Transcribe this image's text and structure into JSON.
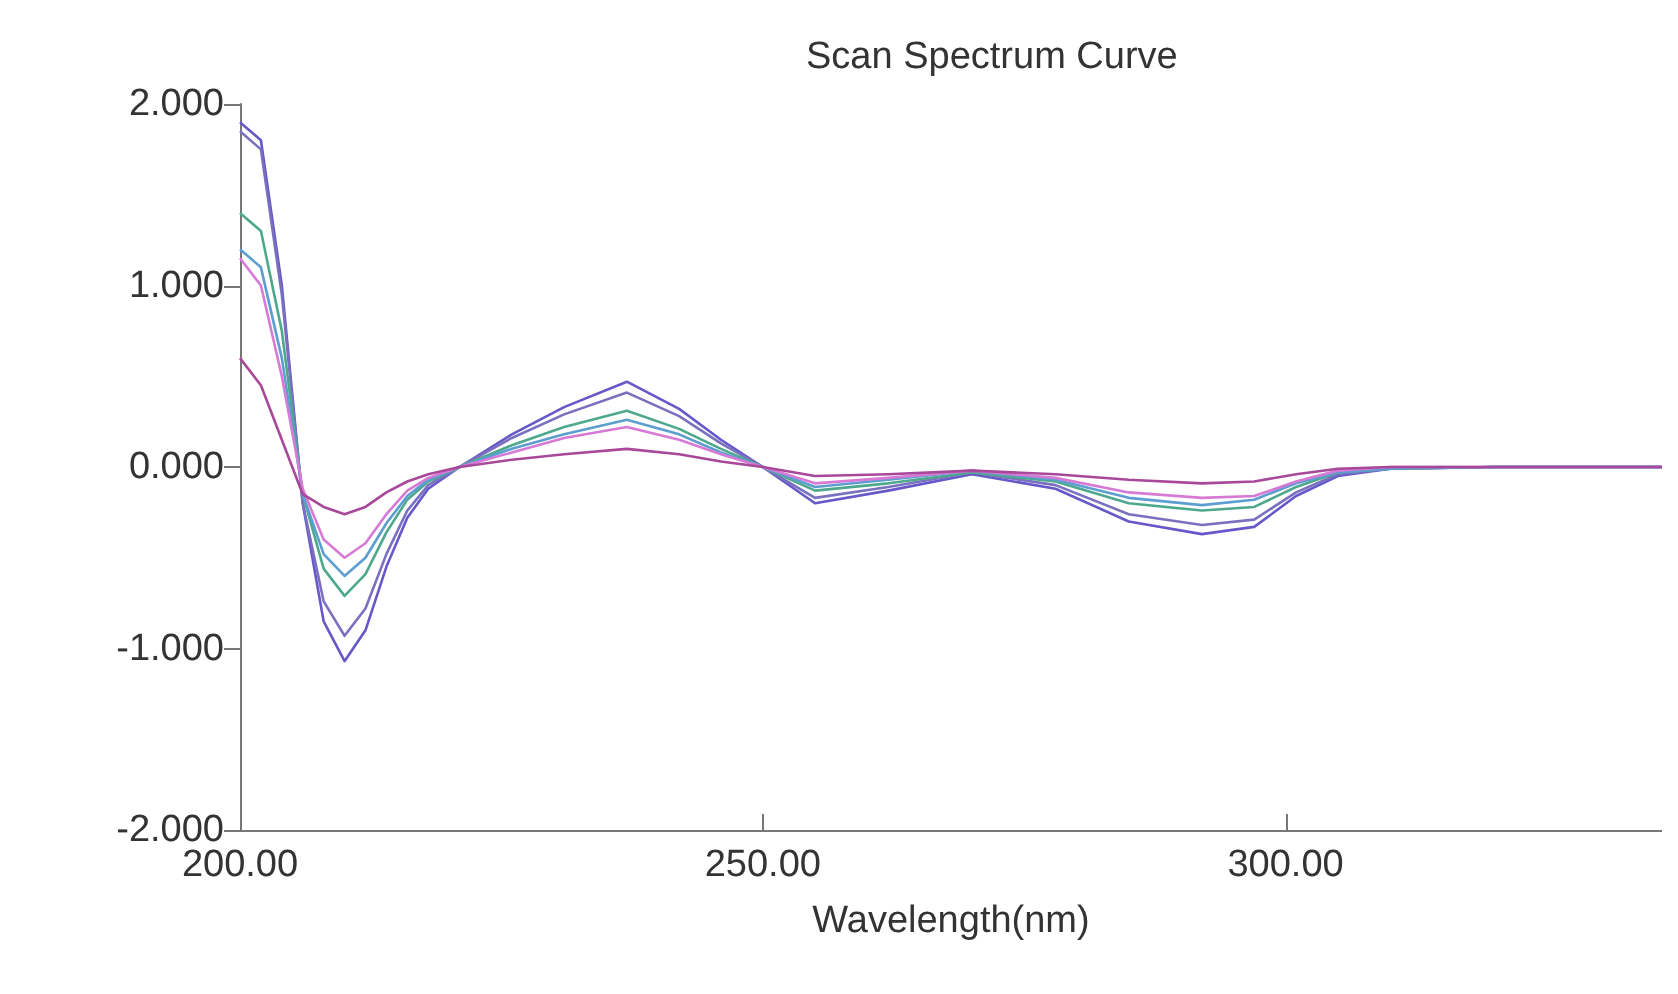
{
  "chart_data": {
    "type": "line",
    "title": "Scan Spectrum Curve",
    "xlabel": "Wavelength(nm)",
    "x": [
      200,
      202,
      204,
      206,
      208,
      210,
      212,
      214,
      216,
      218,
      221,
      226,
      231,
      237,
      242,
      246,
      250,
      255,
      262,
      270,
      278,
      285,
      292,
      297,
      301,
      305,
      310,
      320,
      336
    ],
    "xlim": [
      200,
      336
    ],
    "xticks": [
      {
        "value": 200,
        "label": "200.00"
      },
      {
        "value": 250,
        "label": "250.00"
      },
      {
        "value": 300,
        "label": "300.00"
      }
    ],
    "ylim": [
      -2,
      2
    ],
    "yticks": [
      {
        "value": -2,
        "label": "-2.000"
      },
      {
        "value": -1,
        "label": "-1.000"
      },
      {
        "value": 0,
        "label": "0.000"
      },
      {
        "value": 1,
        "label": "1.000"
      },
      {
        "value": 2,
        "label": "2.000"
      }
    ],
    "grid": false,
    "marker": "none",
    "line_style": "solid",
    "series": [
      {
        "color": "#6658c8",
        "values": [
          1.9,
          1.8,
          1.0,
          -0.2,
          -0.85,
          -1.07,
          -0.9,
          -0.55,
          -0.28,
          -0.12,
          0.0,
          0.18,
          0.33,
          0.47,
          0.32,
          0.15,
          0.0,
          -0.2,
          -0.13,
          -0.04,
          -0.12,
          -0.3,
          -0.37,
          -0.33,
          -0.16,
          -0.05,
          -0.01,
          0,
          0
        ]
      },
      {
        "color": "#7a70c0",
        "values": [
          1.85,
          1.75,
          0.95,
          -0.2,
          -0.74,
          -0.93,
          -0.78,
          -0.48,
          -0.24,
          -0.1,
          0.0,
          0.16,
          0.29,
          0.41,
          0.28,
          0.13,
          0.0,
          -0.17,
          -0.11,
          -0.03,
          -0.1,
          -0.26,
          -0.32,
          -0.29,
          -0.14,
          -0.04,
          -0.01,
          0,
          0
        ]
      },
      {
        "color": "#4ea88e",
        "values": [
          1.4,
          1.3,
          0.75,
          -0.15,
          -0.56,
          -0.71,
          -0.59,
          -0.36,
          -0.18,
          -0.08,
          0.0,
          0.12,
          0.22,
          0.31,
          0.21,
          0.1,
          0.0,
          -0.13,
          -0.09,
          -0.03,
          -0.08,
          -0.2,
          -0.24,
          -0.22,
          -0.11,
          -0.03,
          -0.01,
          0,
          0
        ]
      },
      {
        "color": "#5c9ed0",
        "values": [
          1.2,
          1.1,
          0.6,
          -0.15,
          -0.48,
          -0.6,
          -0.5,
          -0.31,
          -0.16,
          -0.07,
          0.0,
          0.1,
          0.18,
          0.26,
          0.18,
          0.08,
          0.0,
          -0.11,
          -0.07,
          -0.02,
          -0.07,
          -0.17,
          -0.21,
          -0.18,
          -0.09,
          -0.03,
          -0.01,
          0,
          0
        ]
      },
      {
        "color": "#d77ad6",
        "values": [
          1.15,
          1.0,
          0.5,
          -0.12,
          -0.4,
          -0.5,
          -0.42,
          -0.26,
          -0.13,
          -0.06,
          0.0,
          0.08,
          0.16,
          0.22,
          0.15,
          0.07,
          0.0,
          -0.09,
          -0.06,
          -0.02,
          -0.06,
          -0.14,
          -0.17,
          -0.16,
          -0.08,
          -0.02,
          0,
          0,
          0
        ]
      },
      {
        "color": "#a8489a",
        "values": [
          0.6,
          0.45,
          0.15,
          -0.15,
          -0.22,
          -0.26,
          -0.22,
          -0.14,
          -0.08,
          -0.04,
          0.0,
          0.04,
          0.07,
          0.1,
          0.07,
          0.03,
          0.0,
          -0.05,
          -0.04,
          -0.02,
          -0.04,
          -0.07,
          -0.09,
          -0.08,
          -0.04,
          -0.01,
          0,
          0,
          0
        ]
      }
    ]
  }
}
